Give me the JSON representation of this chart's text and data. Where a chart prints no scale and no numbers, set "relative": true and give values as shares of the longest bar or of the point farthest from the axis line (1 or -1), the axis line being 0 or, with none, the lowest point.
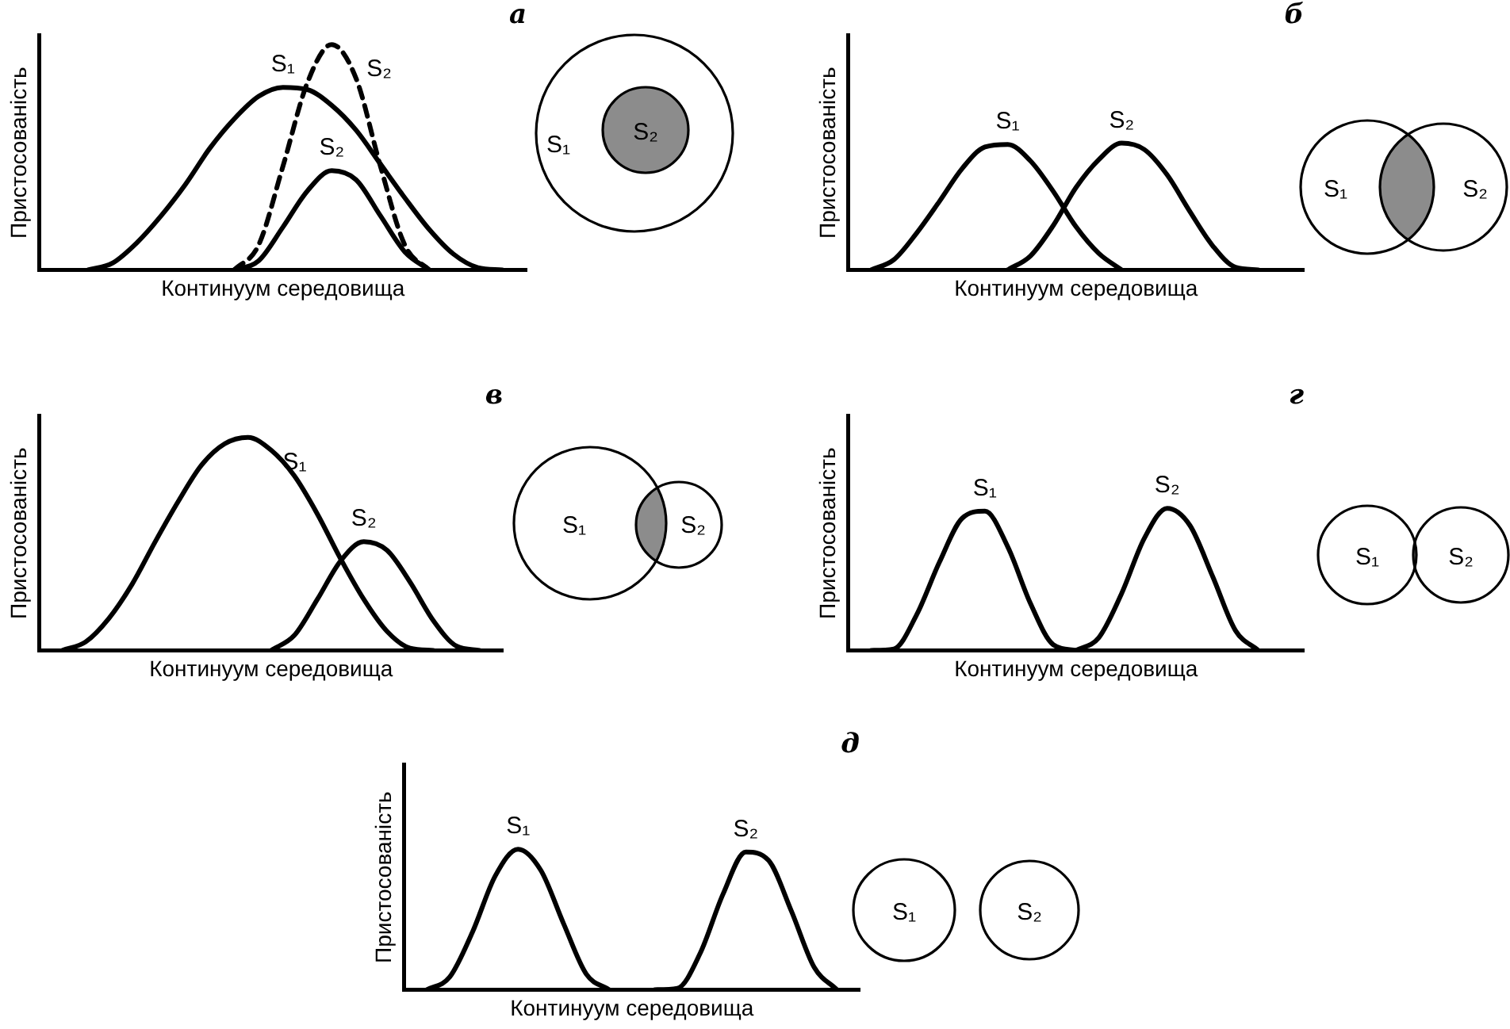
{
  "chart_data": [
    {
      "type": "line",
      "title": "а",
      "xlabel": "Континуум середовища",
      "ylabel": "Пристосованість",
      "relative": true,
      "marker": "none",
      "categories": [
        null,
        null,
        null,
        null,
        null,
        null,
        null,
        null,
        null,
        null,
        null,
        null,
        null,
        null,
        null,
        null,
        null,
        null,
        null,
        null,
        null
      ],
      "series": [
        {
          "name": "S₁",
          "color": "#000000",
          "values": [
            null,
            null,
            0,
            0.03,
            0.12,
            0.24,
            0.38,
            0.54,
            0.67,
            0.77,
            0.81,
            0.8,
            0.73,
            0.62,
            0.47,
            0.32,
            0.18,
            0.07,
            0.01,
            0,
            null
          ]
        },
        {
          "name": "S₂",
          "color": "#000000",
          "line_style": "dashed",
          "values": [
            null,
            null,
            null,
            null,
            null,
            null,
            null,
            null,
            0,
            0.11,
            0.46,
            0.83,
            1,
            0.85,
            0.46,
            0.11,
            0,
            null,
            null,
            null,
            null
          ]
        },
        {
          "name": "S₂",
          "color": "#000000",
          "values": [
            null,
            null,
            null,
            null,
            null,
            null,
            null,
            null,
            0,
            0.04,
            0.19,
            0.35,
            0.44,
            0.4,
            0.24,
            0.08,
            0,
            null,
            null,
            null,
            null
          ]
        }
      ]
    },
    {
      "type": "line",
      "title": "б",
      "xlabel": "Континуум середовища",
      "ylabel": "Пристосованість",
      "relative": true,
      "marker": "none",
      "categories": [
        null,
        null,
        null,
        null,
        null,
        null,
        null,
        null,
        null,
        null,
        null,
        null,
        null,
        null,
        null,
        null,
        null,
        null,
        null,
        null,
        null
      ],
      "series": [
        {
          "name": "S₁",
          "color": "#000000",
          "values": [
            null,
            0,
            0.08,
            0.29,
            0.54,
            0.8,
            0.97,
            0.99,
            0.86,
            0.62,
            0.34,
            0.13,
            0,
            null,
            null,
            null,
            null,
            null,
            null,
            null,
            null
          ]
        },
        {
          "name": "S₂",
          "color": "#000000",
          "values": [
            null,
            null,
            null,
            null,
            null,
            null,
            null,
            0,
            0.11,
            0.35,
            0.65,
            0.87,
            1,
            0.95,
            0.75,
            0.46,
            0.19,
            0.02,
            0,
            null,
            null
          ]
        }
      ]
    },
    {
      "type": "line",
      "title": "в",
      "xlabel": "Континуум середовища",
      "ylabel": "Пристосованість",
      "relative": true,
      "marker": "none",
      "categories": [
        null,
        null,
        null,
        null,
        null,
        null,
        null,
        null,
        null,
        null,
        null,
        null,
        null,
        null,
        null,
        null,
        null,
        null,
        null,
        null,
        null
      ],
      "series": [
        {
          "name": "S₁",
          "color": "#000000",
          "values": [
            null,
            0,
            0.04,
            0.15,
            0.31,
            0.51,
            0.7,
            0.87,
            0.97,
            1,
            0.94,
            0.82,
            0.64,
            0.43,
            0.24,
            0.09,
            0.01,
            0,
            null,
            null,
            null
          ]
        },
        {
          "name": "S₂",
          "color": "#000000",
          "values": [
            null,
            null,
            null,
            null,
            null,
            null,
            null,
            null,
            null,
            null,
            0,
            0.07,
            0.24,
            0.42,
            0.51,
            0.47,
            0.32,
            0.14,
            0.02,
            0,
            null
          ]
        }
      ]
    },
    {
      "type": "line",
      "title": "г",
      "xlabel": "Континуум середовища",
      "ylabel": "Пристосованість",
      "relative": true,
      "marker": "none",
      "categories": [
        null,
        null,
        null,
        null,
        null,
        null,
        null,
        null,
        null,
        null,
        null,
        null,
        null,
        null,
        null,
        null,
        null,
        null,
        null,
        null,
        null
      ],
      "series": [
        {
          "name": "S₁",
          "color": "#000000",
          "values": [
            null,
            0,
            0.01,
            0.25,
            0.62,
            0.93,
            0.98,
            0.73,
            0.33,
            0.04,
            0,
            null,
            null,
            null,
            null,
            null,
            null,
            null,
            null,
            null,
            null
          ]
        },
        {
          "name": "S₂",
          "color": "#000000",
          "values": [
            null,
            null,
            null,
            null,
            null,
            null,
            null,
            null,
            null,
            null,
            0,
            0.09,
            0.4,
            0.79,
            1,
            0.88,
            0.52,
            0.14,
            0,
            null,
            null
          ]
        }
      ]
    },
    {
      "type": "line",
      "title": "д",
      "xlabel": "Континуум середовища",
      "ylabel": "Пристосованість",
      "relative": true,
      "marker": "none",
      "categories": [
        null,
        null,
        null,
        null,
        null,
        null,
        null,
        null,
        null,
        null,
        null,
        null,
        null,
        null,
        null,
        null,
        null,
        null,
        null,
        null,
        null
      ],
      "series": [
        {
          "name": "S₁",
          "color": "#000000",
          "values": [
            null,
            0,
            0.09,
            0.41,
            0.81,
            1,
            0.85,
            0.47,
            0.11,
            0,
            null,
            null,
            null,
            null,
            null,
            null,
            null,
            null,
            null,
            null,
            null
          ]
        },
        {
          "name": "S₂",
          "color": "#000000",
          "values": [
            null,
            null,
            null,
            null,
            null,
            null,
            null,
            null,
            null,
            null,
            null,
            0,
            0.01,
            0.26,
            0.68,
            0.98,
            0.92,
            0.56,
            0.16,
            0,
            null
          ]
        }
      ]
    }
  ]
}
